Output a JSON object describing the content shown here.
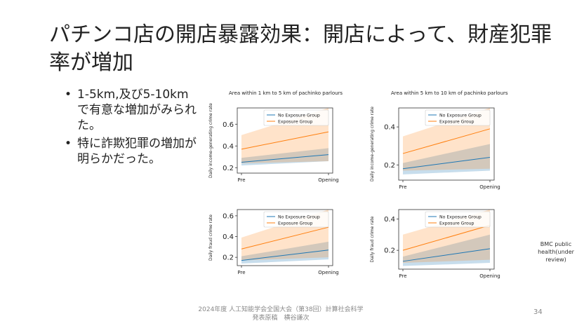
{
  "slide": {
    "title": "パチンコ店の開店暴露効果：開店によって、財産犯罪率が増加",
    "bullets": [
      "1-5km,及び5-10kmで有意な増加がみられた。",
      "特に詐欺犯罪の増加が明らかだった。"
    ],
    "citation": "BMC public health(under review)",
    "footer_line1": "2024年度 人工知能学会全国大会（第38回）計算社会科学",
    "footer_line2": "発表原稿　横谷謙次",
    "page_number": "34"
  },
  "colors": {
    "no_exposure": "#1f77b4",
    "exposure": "#ff7f0e"
  },
  "chart_data": [
    {
      "type": "line",
      "title": "Area within 1 km to 5 km of pachinko parlours",
      "ylabel": "Daily income-generating crime rate",
      "xlabel": "",
      "categories": [
        "Pre",
        "Opening"
      ],
      "ylim": [
        0.15,
        0.75
      ],
      "yticks": [
        0.2,
        0.4,
        0.6
      ],
      "yticklabels": [
        "0.2",
        "0.4",
        "0.6"
      ],
      "legend": "top-left",
      "series": [
        {
          "name": "No Exposure Group",
          "values": [
            0.25,
            0.32
          ],
          "lower": [
            0.22,
            0.26
          ],
          "upper": [
            0.29,
            0.38
          ]
        },
        {
          "name": "Exposure Group",
          "values": [
            0.37,
            0.53
          ],
          "lower": [
            0.24,
            0.26
          ],
          "upper": [
            0.5,
            0.75
          ]
        }
      ]
    },
    {
      "type": "line",
      "title": "Area within 5 km to 10 km of pachinko parlours",
      "ylabel": "Daily income-generating crime rate",
      "xlabel": "",
      "categories": [
        "Pre",
        "Opening"
      ],
      "ylim": [
        0.12,
        0.5
      ],
      "yticks": [
        0.2,
        0.4
      ],
      "yticklabels": [
        "0.2",
        "0.4"
      ],
      "legend": "top-left",
      "series": [
        {
          "name": "No Exposure Group",
          "values": [
            0.18,
            0.24
          ],
          "lower": [
            0.15,
            0.17
          ],
          "upper": [
            0.21,
            0.31
          ]
        },
        {
          "name": "Exposure Group",
          "values": [
            0.26,
            0.39
          ],
          "lower": [
            0.17,
            0.18
          ],
          "upper": [
            0.35,
            0.5
          ]
        }
      ]
    },
    {
      "type": "line",
      "title": "",
      "ylabel": "Daily fraud crime rate",
      "xlabel": "",
      "categories": [
        "Pre",
        "Opening"
      ],
      "ylim": [
        0.12,
        0.66
      ],
      "yticks": [
        0.2,
        0.4,
        0.6
      ],
      "yticklabels": [
        "0.2",
        "0.4",
        "0.6"
      ],
      "legend": "top-left",
      "series": [
        {
          "name": "No Exposure Group",
          "values": [
            0.17,
            0.27
          ],
          "lower": [
            0.14,
            0.18
          ],
          "upper": [
            0.21,
            0.35
          ]
        },
        {
          "name": "Exposure Group",
          "values": [
            0.28,
            0.49
          ],
          "lower": [
            0.17,
            0.2
          ],
          "upper": [
            0.39,
            0.66
          ]
        }
      ]
    },
    {
      "type": "line",
      "title": "",
      "ylabel": "Daily fraud crime rate",
      "xlabel": "",
      "categories": [
        "Pre",
        "Opening"
      ],
      "ylim": [
        0.08,
        0.46
      ],
      "yticks": [
        0.2,
        0.4
      ],
      "yticklabels": [
        "0.2",
        "0.4"
      ],
      "legend": "top-left",
      "series": [
        {
          "name": "No Exposure Group",
          "values": [
            0.13,
            0.21
          ],
          "lower": [
            0.1,
            0.12
          ],
          "upper": [
            0.16,
            0.3
          ]
        },
        {
          "name": "Exposure Group",
          "values": [
            0.2,
            0.36
          ],
          "lower": [
            0.12,
            0.14
          ],
          "upper": [
            0.3,
            0.46
          ]
        }
      ]
    }
  ]
}
